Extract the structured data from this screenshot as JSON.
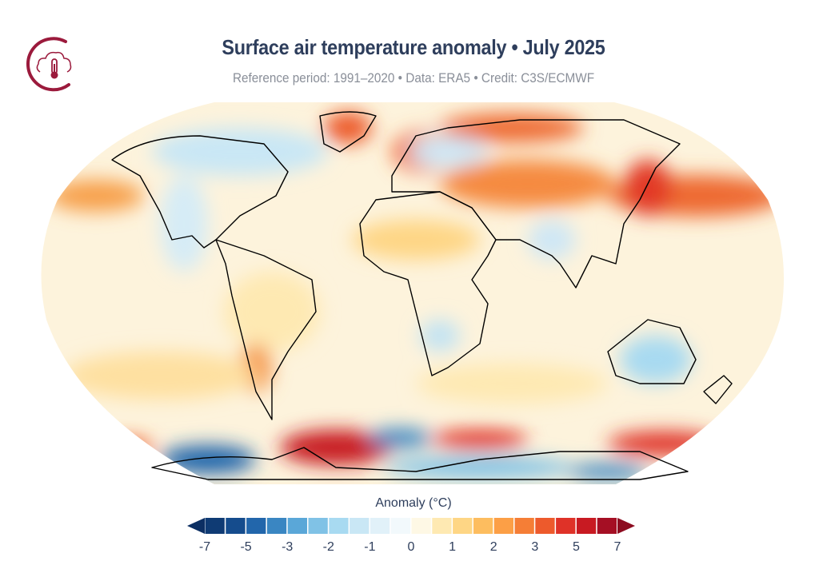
{
  "header": {
    "title": "Surface air temperature anomaly • July 2025",
    "subtitle": "Reference period: 1991–2020 • Data: ERA5 • Credit: C3S/ECMWF",
    "logo_icon": "cloud-thermometer-icon",
    "logo_color": "#9b1a3c"
  },
  "map": {
    "projection": "Robinson",
    "variable": "Surface air temperature anomaly",
    "ocean_background": "#fdf3dc",
    "coastline_color": "#000000",
    "notable_anomalies": [
      {
        "region": "North Pacific near Japan",
        "sign": "warm"
      },
      {
        "region": "Central Asia",
        "sign": "warm"
      },
      {
        "region": "Scandinavia",
        "sign": "warm"
      },
      {
        "region": "Greenland",
        "sign": "warm"
      },
      {
        "region": "Antarctica (Weddell/Pacific sectors)",
        "sign": "warm"
      },
      {
        "region": "Antarctica (coastal sectors)",
        "sign": "cold"
      },
      {
        "region": "Australia",
        "sign": "cold"
      }
    ]
  },
  "colorbar": {
    "label": "Anomaly (°C)",
    "ticks": [
      "-7",
      "-5",
      "-3",
      "-2",
      "-1",
      "0",
      "1",
      "2",
      "3",
      "5",
      "7"
    ],
    "colors": [
      "#0f3b74",
      "#154c8d",
      "#2266ab",
      "#3a86c2",
      "#5aa7d8",
      "#80c2e6",
      "#a8daf1",
      "#c9e7f5",
      "#e1f1f9",
      "#f2f9fc",
      "#fef8e5",
      "#fee9b2",
      "#fed685",
      "#fdbd5f",
      "#fc9f46",
      "#f57e36",
      "#ed5a2c",
      "#df3228",
      "#c81a22",
      "#a50f24"
    ],
    "under_color": "#0c2f63",
    "over_color": "#8d0c20"
  }
}
